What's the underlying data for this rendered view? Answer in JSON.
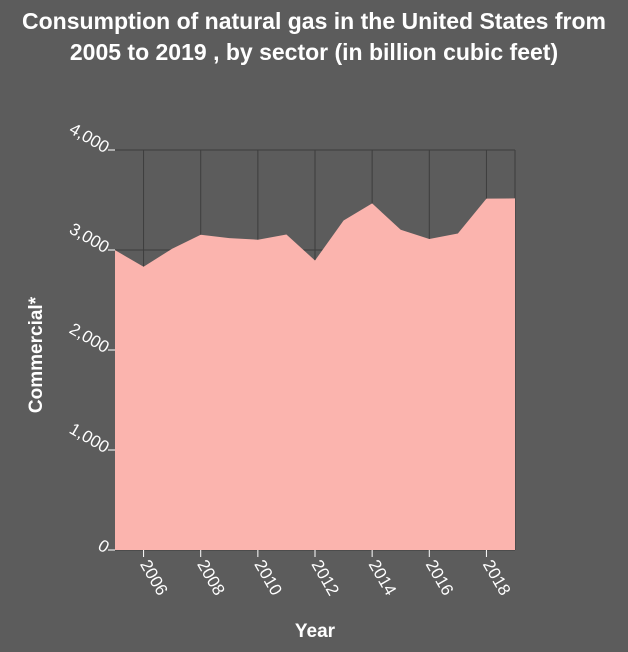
{
  "chart_data": {
    "type": "area",
    "title": "Consumption of natural gas in the United States from 2005 to 2019 , by sector (in billion cubic feet)",
    "xlabel": "Year",
    "ylabel": "Commercial*",
    "x": [
      2005,
      2006,
      2007,
      2008,
      2009,
      2010,
      2011,
      2012,
      2013,
      2014,
      2015,
      2016,
      2017,
      2018,
      2019
    ],
    "series": [
      {
        "values": [
          2999,
          2832,
          3013,
          3153,
          3119,
          3103,
          3155,
          2895,
          3295,
          3466,
          3202,
          3110,
          3165,
          3514,
          3516
        ]
      }
    ],
    "xticks": [
      2006,
      2008,
      2010,
      2012,
      2014,
      2016,
      2018
    ],
    "xtick_labels": [
      "2006",
      "2008",
      "2010",
      "2012",
      "2014",
      "2016",
      "2018"
    ],
    "yticks": [
      0,
      1000,
      2000,
      3000,
      4000
    ],
    "ytick_labels": [
      "0",
      "1,000",
      "2,000",
      "3,000",
      "4,000"
    ],
    "xlim": [
      2005,
      2019
    ],
    "ylim": [
      0,
      4000
    ],
    "grid": true,
    "legend": "none",
    "colors": {
      "background": "#5c5c5c",
      "area_fill": "#fbb4ae",
      "grid": "#3d3d3d",
      "text": "#ffffff"
    }
  }
}
